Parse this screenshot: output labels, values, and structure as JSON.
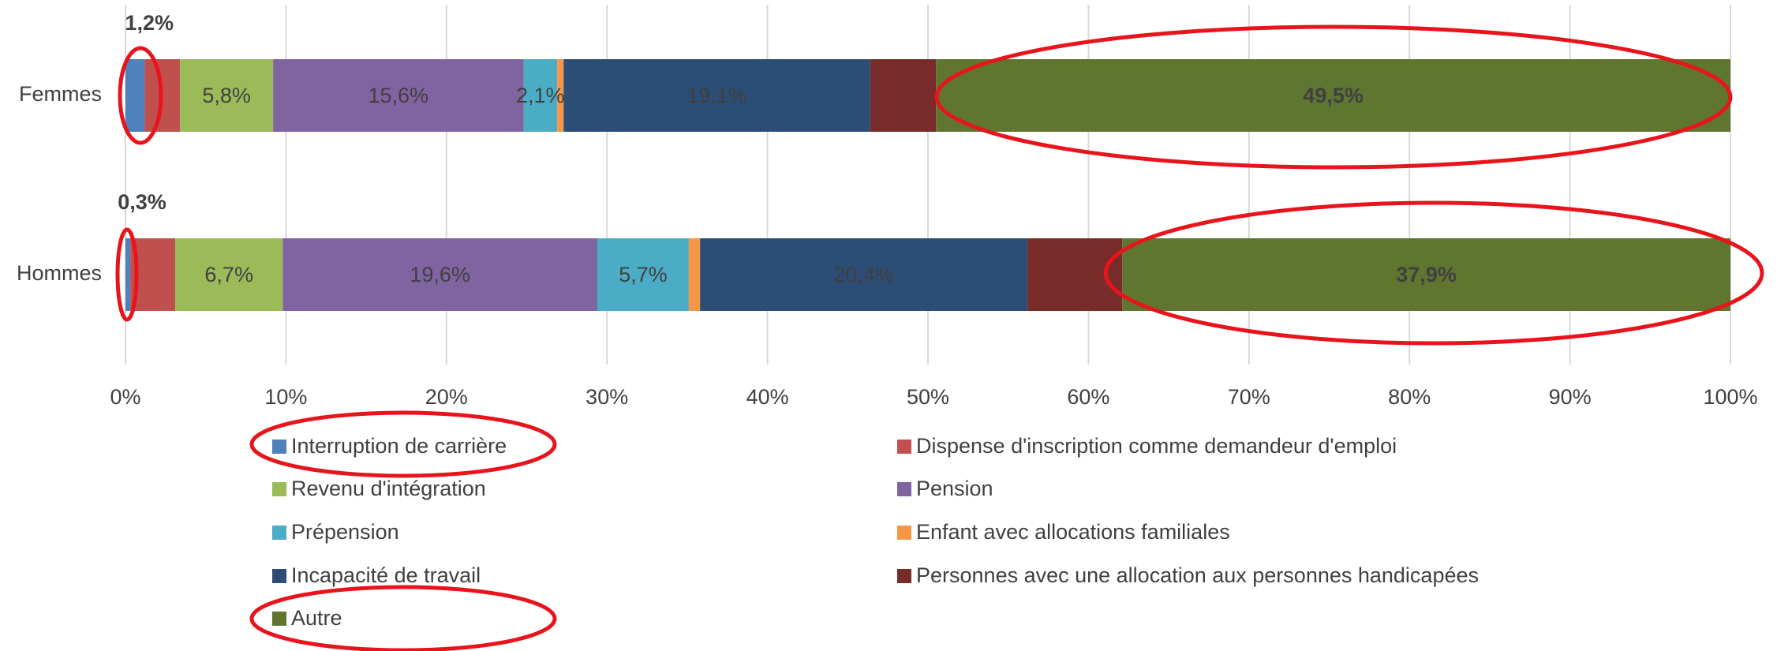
{
  "chart_data": {
    "type": "stacked_barh",
    "categories": [
      "Femmes",
      "Hommes"
    ],
    "series": [
      {
        "name": "Interruption de carrière",
        "color": "#4f81bd",
        "values": [
          1.2,
          0.3
        ],
        "value_labels": [
          "1,2%",
          "0,3%"
        ]
      },
      {
        "name": "Dispense d'inscription comme demandeur d'emploi",
        "color": "#c0504d",
        "values": [
          2.2,
          2.8
        ]
      },
      {
        "name": "Revenu d'intégration",
        "color": "#9bbb59",
        "values": [
          5.8,
          6.7
        ],
        "value_labels": [
          "5,8%",
          "6,7%"
        ]
      },
      {
        "name": "Pension",
        "color": "#8064a2",
        "values": [
          15.6,
          19.6
        ],
        "value_labels": [
          "15,6%",
          "19,6%"
        ]
      },
      {
        "name": "Prépension",
        "color": "#4bacc6",
        "values": [
          2.1,
          5.7
        ],
        "value_labels": [
          "2,1%",
          "5,7%"
        ]
      },
      {
        "name": "Enfant avec allocations familiales",
        "color": "#f79646",
        "values": [
          0.4,
          0.7
        ]
      },
      {
        "name": "Incapacité de travail",
        "color": "#2c4d75",
        "values": [
          19.1,
          20.4
        ],
        "value_labels": [
          "19,1%",
          "20,4%"
        ]
      },
      {
        "name": "Personnes avec une allocation aux personnes handicapées",
        "color": "#772c2a",
        "values": [
          4.1,
          5.9
        ]
      },
      {
        "name": "Autre",
        "color": "#5f7530",
        "values": [
          49.5,
          37.9
        ],
        "value_labels": [
          "49,5%",
          "37,9%"
        ]
      }
    ],
    "xlim": [
      0,
      100
    ],
    "xticks": [
      {
        "value": 0,
        "label": "0%"
      },
      {
        "value": 10,
        "label": "10%"
      },
      {
        "value": 20,
        "label": "20%"
      },
      {
        "value": 30,
        "label": "30%"
      },
      {
        "value": 40,
        "label": "40%"
      },
      {
        "value": 50,
        "label": "50%"
      },
      {
        "value": 60,
        "label": "60%"
      },
      {
        "value": 70,
        "label": "70%"
      },
      {
        "value": 80,
        "label": "80%"
      },
      {
        "value": 90,
        "label": "90%"
      },
      {
        "value": 100,
        "label": "100%"
      }
    ],
    "grid": true,
    "legend": "bottom"
  }
}
